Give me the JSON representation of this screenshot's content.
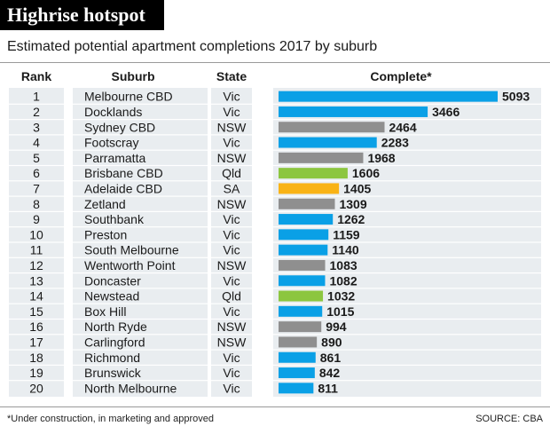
{
  "header": {
    "title": "Highrise hotspot",
    "subtitle": "Estimated potential apartment completions 2017 by suburb"
  },
  "table": {
    "columns": [
      "Rank",
      "Suburb",
      "State",
      "Complete*"
    ]
  },
  "footer": {
    "note": "*Under construction, in marketing and approved",
    "source": "SOURCE: CBA"
  },
  "colors": {
    "Vic": "#0aa0e6",
    "NSW": "#8f8f8f",
    "Qld": "#8cc63f",
    "SA": "#f9b315",
    "row_band": "#e9edf0"
  },
  "chart_data": {
    "type": "bar",
    "orientation": "horizontal",
    "title": "Highrise hotspot",
    "subtitle": "Estimated potential apartment completions 2017 by suburb",
    "xlabel": "Complete*",
    "xlim": [
      0,
      5093
    ],
    "grid": false,
    "legend": "none",
    "rows": [
      {
        "rank": "1",
        "suburb": "Melbourne CBD",
        "state": "Vic",
        "value": 5093
      },
      {
        "rank": "2",
        "suburb": "Docklands",
        "state": "Vic",
        "value": 3466
      },
      {
        "rank": "3",
        "suburb": "Sydney CBD",
        "state": "NSW",
        "value": 2464
      },
      {
        "rank": "4",
        "suburb": "Footscray",
        "state": "Vic",
        "value": 2283
      },
      {
        "rank": "5",
        "suburb": "Parramatta",
        "state": "NSW",
        "value": 1968
      },
      {
        "rank": "6",
        "suburb": "Brisbane CBD",
        "state": "Qld",
        "value": 1606
      },
      {
        "rank": "7",
        "suburb": "Adelaide CBD",
        "state": "SA",
        "value": 1405
      },
      {
        "rank": "8",
        "suburb": "Zetland",
        "state": "NSW",
        "value": 1309
      },
      {
        "rank": "9",
        "suburb": "Southbank",
        "state": "Vic",
        "value": 1262
      },
      {
        "rank": "10",
        "suburb": "Preston",
        "state": "Vic",
        "value": 1159
      },
      {
        "rank": "11",
        "suburb": "South Melbourne",
        "state": "Vic",
        "value": 1140
      },
      {
        "rank": "12",
        "suburb": "Wentworth Point",
        "state": "NSW",
        "value": 1083
      },
      {
        "rank": "13",
        "suburb": "Doncaster",
        "state": "Vic",
        "value": 1082
      },
      {
        "rank": "14",
        "suburb": "Newstead",
        "state": "Qld",
        "value": 1032
      },
      {
        "rank": "15",
        "suburb": "Box Hill",
        "state": "Vic",
        "value": 1015
      },
      {
        "rank": "16",
        "suburb": "North Ryde",
        "state": "NSW",
        "value": 994
      },
      {
        "rank": "17",
        "suburb": "Carlingford",
        "state": "NSW",
        "value": 890
      },
      {
        "rank": "18",
        "suburb": "Richmond",
        "state": "Vic",
        "value": 861
      },
      {
        "rank": "19",
        "suburb": "Brunswick",
        "state": "Vic",
        "value": 842
      },
      {
        "rank": "20",
        "suburb": "North Melbourne",
        "state": "Vic",
        "value": 811
      }
    ]
  }
}
